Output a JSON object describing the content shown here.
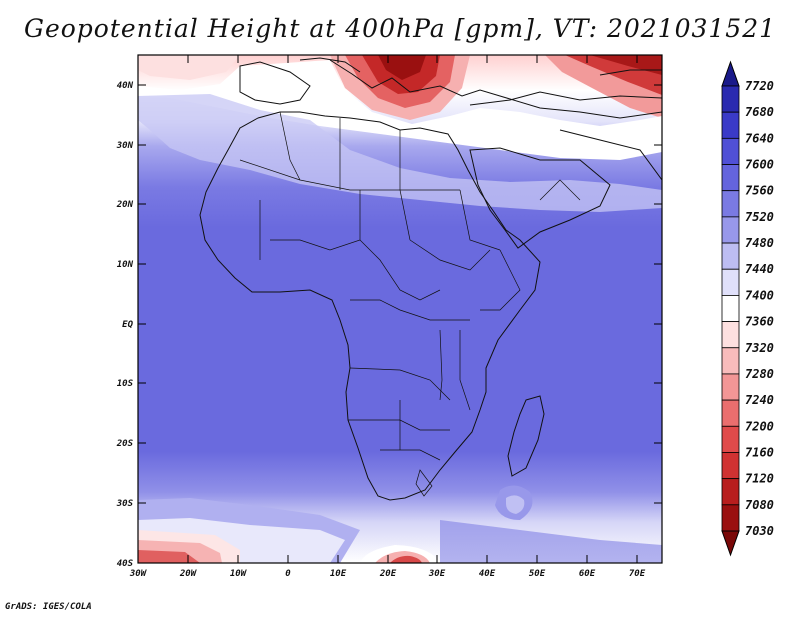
{
  "title": "Geopotential Height at 400hPa [gpm], VT: 2021031521",
  "footer": "GrADS: IGES/COLA",
  "map": {
    "lon_range": [
      -30,
      75
    ],
    "lat_range": [
      -40,
      45
    ],
    "lat_ticks": [
      "40N",
      "30N",
      "20N",
      "10N",
      "EQ",
      "10S",
      "20S",
      "30S",
      "40S"
    ],
    "lon_ticks": [
      "30W",
      "20W",
      "10W",
      "0",
      "10E",
      "20E",
      "30E",
      "40E",
      "50E",
      "60E",
      "70E"
    ]
  },
  "colorbar": {
    "levels": [
      "7720",
      "7680",
      "7640",
      "7600",
      "7560",
      "7520",
      "7480",
      "7440",
      "7400",
      "7360",
      "7320",
      "7280",
      "7240",
      "7200",
      "7160",
      "7120",
      "7080",
      "7030"
    ],
    "colors": [
      "#1a1a8a",
      "#2a2ab0",
      "#3a3ac8",
      "#5050d6",
      "#6464dd",
      "#7a7ae3",
      "#9898ea",
      "#bdbdf2",
      "#e0e0fa",
      "#ffffff",
      "#fde0e0",
      "#f8bcbc",
      "#f29696",
      "#ea6e6e",
      "#e04a4a",
      "#d03232",
      "#b81e1e",
      "#9a1010",
      "#7a0808"
    ]
  }
}
